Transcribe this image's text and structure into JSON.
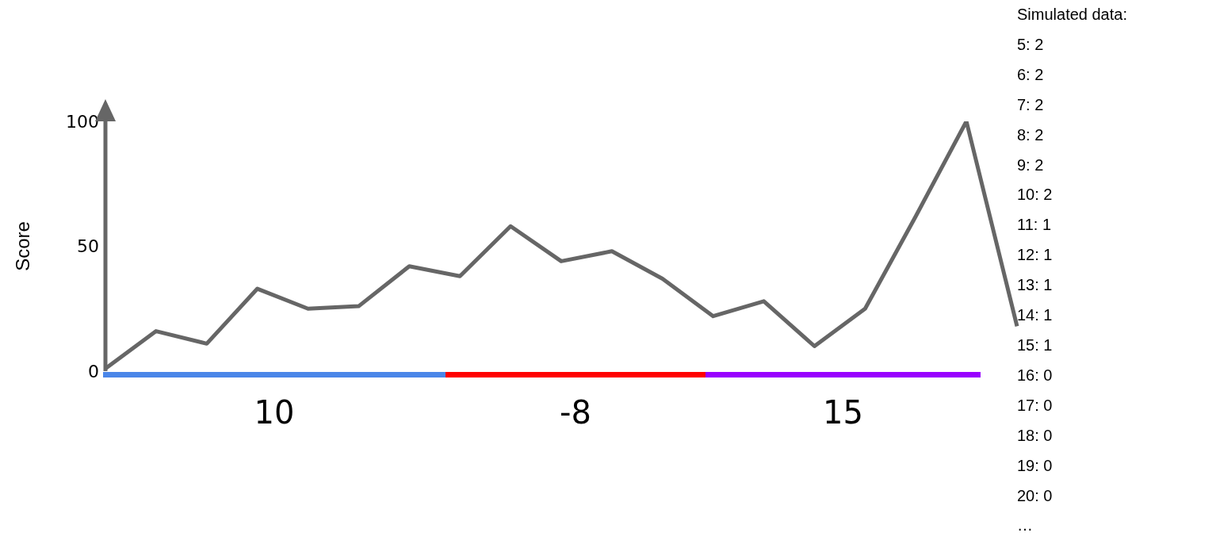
{
  "chart_data": [
    {
      "type": "line",
      "ylabel": "Score",
      "categories": [
        null,
        null,
        null,
        null,
        null,
        null,
        null,
        null,
        null,
        null,
        null,
        null,
        null,
        null,
        null,
        null,
        null,
        null,
        null
      ],
      "series": [
        {
          "color": "#666666",
          "values": [
            1,
            16,
            11,
            33,
            25,
            26,
            42,
            38,
            58,
            44,
            48,
            37,
            22,
            28,
            10,
            25,
            62,
            100,
            18
          ]
        }
      ],
      "ylim": [
        0,
        100
      ],
      "yticks": [
        0,
        50,
        100
      ],
      "tick_labels": "y",
      "grid": false,
      "legend": false,
      "marker": "none",
      "line_style": "solid",
      "annotations": [
        "10",
        "-8",
        "15"
      ]
    },
    {
      "type": "other",
      "title": "Simulated data:",
      "annotations": [
        "5: 2",
        "6: 2",
        "7: 2",
        "8: 2",
        "9: 2",
        "10: 2",
        "11: 1",
        "12: 1",
        "13: 1",
        "14: 1",
        "15: 1",
        "16: 0",
        "17: 0",
        "18: 0",
        "19: 0",
        "20: 0",
        "…"
      ]
    }
  ]
}
